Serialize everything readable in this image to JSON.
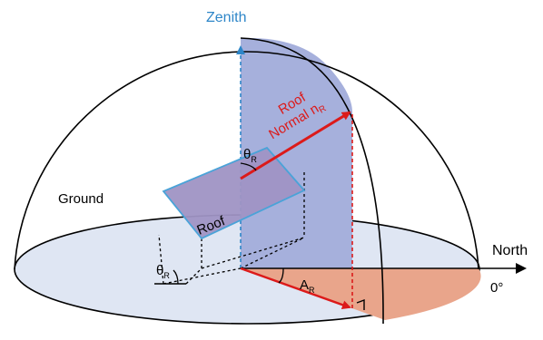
{
  "labels": {
    "zenith": "Zenith",
    "roof_normal_line1": "Roof",
    "roof_normal_line2": "Normal n",
    "roof_normal_sub": "R",
    "theta": "θ",
    "theta_sub": "R",
    "roof": "Roof",
    "ground": "Ground",
    "north": "North",
    "zero_deg": "0°",
    "azimuth": "A",
    "azimuth_sub": "R"
  },
  "colors": {
    "zenith_blue": "#2e86c8",
    "normal_red": "#dc1a1a",
    "ground_fill": "#dfe6f3",
    "roof_fill": "#9f94c4",
    "roof_stroke": "#4aa3d8",
    "zenith_plane_fill": "#a6b0dc",
    "azimuth_fill": "#e9a58b",
    "line": "#000000"
  }
}
